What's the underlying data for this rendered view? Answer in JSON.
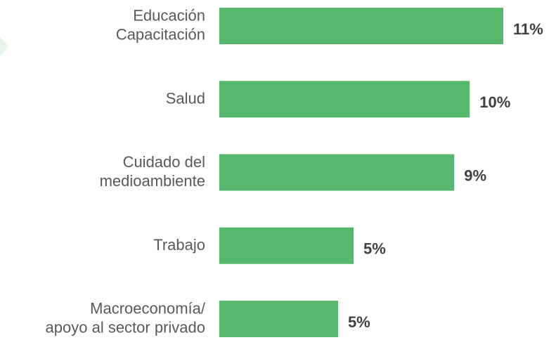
{
  "chart_data": {
    "type": "bar",
    "orientation": "horizontal",
    "categories": [
      "Educación\nCapacitación",
      "Salud",
      "Cuidado del\nmedioambiente",
      "Trabajo",
      "Macroeconomía/\napoyo al sector privado"
    ],
    "values": [
      11,
      9.7,
      9.1,
      5.2,
      4.6
    ],
    "value_labels": [
      "11%",
      "10%",
      "9%",
      "5%",
      "5%"
    ],
    "color": "#56b86a",
    "xlim": [
      0,
      11
    ]
  }
}
